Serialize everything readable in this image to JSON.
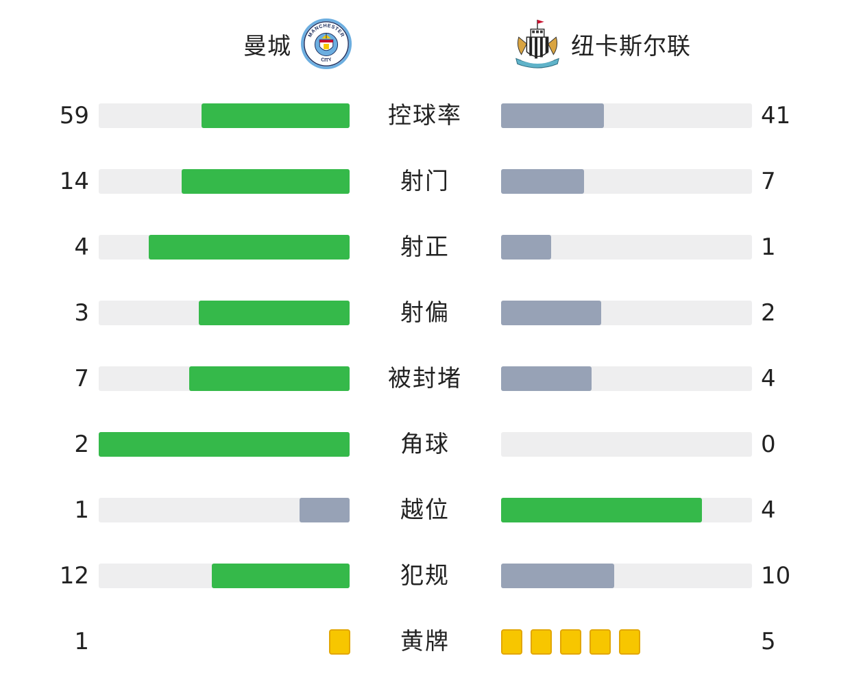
{
  "home": {
    "name": "曼城",
    "crest_text_top": "MANCHESTER",
    "crest_text_bottom": "CITY",
    "accent": "#35b94a"
  },
  "away": {
    "name": "纽卡斯尔联",
    "accent": "#97a2b6"
  },
  "colors": {
    "leader_bar": "#35b94a",
    "trailer_bar": "#97a2b6",
    "track": "#eeeeef",
    "yellow_card": "#f7c600"
  },
  "stats": [
    {
      "label": "控球率",
      "home": "59",
      "away": "41",
      "home_fill": 0.59,
      "away_fill": 0.41,
      "leader": "home"
    },
    {
      "label": "射门",
      "home": "14",
      "away": "7",
      "home_fill": 0.67,
      "away_fill": 0.33,
      "leader": "home"
    },
    {
      "label": "射正",
      "home": "4",
      "away": "1",
      "home_fill": 0.8,
      "away_fill": 0.2,
      "leader": "home"
    },
    {
      "label": "射偏",
      "home": "3",
      "away": "2",
      "home_fill": 0.6,
      "away_fill": 0.4,
      "leader": "home"
    },
    {
      "label": "被封堵",
      "home": "7",
      "away": "4",
      "home_fill": 0.64,
      "away_fill": 0.36,
      "leader": "home"
    },
    {
      "label": "角球",
      "home": "2",
      "away": "0",
      "home_fill": 1.0,
      "away_fill": 0.0,
      "leader": "home"
    },
    {
      "label": "越位",
      "home": "1",
      "away": "4",
      "home_fill": 0.2,
      "away_fill": 0.8,
      "leader": "away"
    },
    {
      "label": "犯规",
      "home": "12",
      "away": "10",
      "home_fill": 0.55,
      "away_fill": 0.45,
      "leader": "home"
    }
  ],
  "yellow_cards": {
    "label": "黄牌",
    "home": "1",
    "away": "5",
    "home_count": 1,
    "away_count": 5
  }
}
